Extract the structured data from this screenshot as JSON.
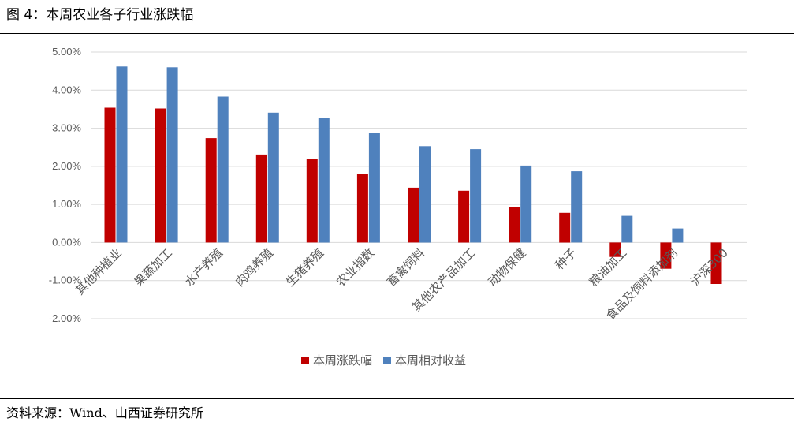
{
  "figure_title": "图 4：本周农业各子行业涨跌幅",
  "source_note": "资料来源：Wind、山西证券研究所",
  "colors": {
    "series1": "#C00000",
    "series2": "#4F81BD",
    "grid": "#D9D9D9",
    "axis_text": "#595959"
  },
  "chart_data": {
    "type": "bar",
    "title": "",
    "xlabel": "",
    "ylabel": "",
    "ylim": [
      -0.02,
      0.05
    ],
    "yticks": [
      "5.00%",
      "4.00%",
      "3.00%",
      "2.00%",
      "1.00%",
      "0.00%",
      "-1.00%",
      "-2.00%"
    ],
    "grid": true,
    "legend_position": "bottom",
    "categories": [
      "其他种植业",
      "果蔬加工",
      "水产养殖",
      "肉鸡养殖",
      "生猪养殖",
      "农业指数",
      "畜禽饲料",
      "其他农产品加工",
      "动物保健",
      "种子",
      "粮油加工",
      "食品及饲料添加剂",
      "沪深300"
    ],
    "series": [
      {
        "name": "本周涨跌幅",
        "values": [
          0.0354,
          0.0352,
          0.0274,
          0.0231,
          0.0219,
          0.0179,
          0.0144,
          0.0136,
          0.0094,
          0.0078,
          -0.0038,
          -0.0069,
          -0.0109
        ]
      },
      {
        "name": "本周相对收益",
        "values": [
          0.0462,
          0.046,
          0.0383,
          0.0341,
          0.0328,
          0.0288,
          0.0253,
          0.0245,
          0.0202,
          0.0187,
          0.007,
          0.0037,
          null
        ]
      }
    ]
  }
}
